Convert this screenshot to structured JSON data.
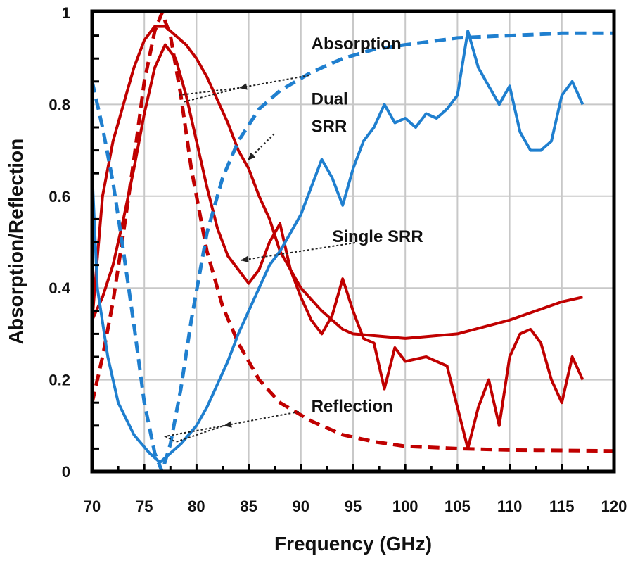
{
  "chart_data": {
    "type": "line",
    "xlabel": "Frequency (GHz)",
    "ylabel": "Absorption/Reflection",
    "xlim": [
      70,
      120
    ],
    "ylim": [
      0,
      1
    ],
    "xticks": [
      70,
      75,
      80,
      85,
      90,
      95,
      100,
      105,
      110,
      115,
      120
    ],
    "yticks": [
      0,
      0.2,
      0.4,
      0.6,
      0.8,
      1
    ],
    "ytick_labels": [
      "0",
      "0.2",
      "0.4",
      "0.6",
      "0.8",
      "1"
    ],
    "grid": true,
    "colors": {
      "absorption": "#c00000",
      "reflection": "#1f7fcf"
    },
    "series": [
      {
        "key": "dual_abs",
        "style": "solid",
        "color": "#c00000",
        "x": [
          70,
          71,
          72,
          73,
          74,
          75,
          76,
          77,
          78,
          79,
          80,
          81,
          82,
          83,
          84,
          85,
          86,
          87,
          88,
          89,
          90,
          92,
          94,
          95,
          100,
          105,
          110,
          115,
          117
        ],
        "y": [
          0.33,
          0.6,
          0.72,
          0.8,
          0.88,
          0.94,
          0.97,
          0.97,
          0.95,
          0.93,
          0.9,
          0.86,
          0.81,
          0.76,
          0.7,
          0.66,
          0.6,
          0.55,
          0.48,
          0.44,
          0.4,
          0.35,
          0.31,
          0.3,
          0.29,
          0.3,
          0.33,
          0.37,
          0.38
        ]
      },
      {
        "key": "single_abs",
        "style": "solid",
        "color": "#c00000",
        "x": [
          70,
          71,
          72,
          73,
          74,
          75,
          76,
          77,
          78,
          79,
          80,
          81,
          82,
          83,
          84,
          85,
          86,
          87,
          88,
          89,
          90,
          91,
          92,
          93,
          94,
          95,
          96,
          97,
          98,
          99,
          100,
          102,
          104,
          105,
          106,
          107,
          108,
          109,
          110,
          111,
          112,
          113,
          114,
          115,
          116,
          117
        ],
        "y": [
          0.33,
          0.38,
          0.45,
          0.55,
          0.66,
          0.78,
          0.88,
          0.93,
          0.9,
          0.82,
          0.72,
          0.62,
          0.53,
          0.47,
          0.44,
          0.41,
          0.44,
          0.5,
          0.54,
          0.44,
          0.38,
          0.33,
          0.3,
          0.34,
          0.42,
          0.35,
          0.29,
          0.28,
          0.18,
          0.27,
          0.24,
          0.25,
          0.23,
          0.14,
          0.05,
          0.14,
          0.2,
          0.1,
          0.25,
          0.3,
          0.31,
          0.28,
          0.2,
          0.15,
          0.25,
          0.2
        ]
      },
      {
        "key": "sim_abs",
        "style": "dashed",
        "color": "#c00000",
        "x": [
          70,
          71,
          72,
          73,
          74,
          75,
          76,
          76.7,
          77.5,
          78.5,
          79.5,
          81,
          82.5,
          84,
          86,
          88,
          91,
          94,
          97,
          100,
          105,
          110,
          115,
          120
        ],
        "y": [
          0.15,
          0.25,
          0.37,
          0.52,
          0.68,
          0.85,
          0.96,
          1.0,
          0.95,
          0.82,
          0.66,
          0.48,
          0.36,
          0.28,
          0.2,
          0.15,
          0.11,
          0.08,
          0.065,
          0.055,
          0.05,
          0.047,
          0.046,
          0.045
        ]
      },
      {
        "key": "sim_ref",
        "style": "dashed",
        "color": "#1f7fcf",
        "x": [
          70,
          71,
          72,
          73,
          74,
          75,
          76,
          76.7,
          77.5,
          78.5,
          79.5,
          81,
          82.5,
          84,
          86,
          88,
          91,
          94,
          97,
          100,
          105,
          110,
          115,
          120
        ],
        "y": [
          0.85,
          0.75,
          0.63,
          0.48,
          0.32,
          0.15,
          0.04,
          0.0,
          0.06,
          0.18,
          0.33,
          0.52,
          0.64,
          0.72,
          0.79,
          0.83,
          0.87,
          0.9,
          0.92,
          0.93,
          0.945,
          0.95,
          0.955,
          0.955
        ]
      },
      {
        "key": "meas_ref",
        "style": "solid",
        "color": "#1f7fcf",
        "x": [
          70,
          70.5,
          71.5,
          72.5,
          74,
          75.5,
          76.5,
          77.5,
          78.5,
          80,
          81,
          82,
          83,
          84,
          85,
          86,
          87,
          88,
          89,
          90,
          91,
          92,
          93,
          94,
          95,
          96,
          97,
          98,
          99,
          100,
          101,
          102,
          103,
          104,
          105,
          106,
          107,
          108,
          109,
          110,
          111,
          112,
          113,
          114,
          115,
          116,
          117
        ],
        "y": [
          0.65,
          0.4,
          0.25,
          0.15,
          0.08,
          0.04,
          0.02,
          0.04,
          0.06,
          0.1,
          0.14,
          0.19,
          0.24,
          0.3,
          0.35,
          0.4,
          0.45,
          0.48,
          0.52,
          0.56,
          0.62,
          0.68,
          0.64,
          0.58,
          0.66,
          0.72,
          0.75,
          0.8,
          0.76,
          0.77,
          0.75,
          0.78,
          0.77,
          0.79,
          0.82,
          0.96,
          0.88,
          0.84,
          0.8,
          0.84,
          0.74,
          0.7,
          0.7,
          0.72,
          0.82,
          0.85,
          0.8
        ]
      }
    ],
    "annotations": [
      {
        "text": "Absorption",
        "x": 91,
        "y": 0.92
      },
      {
        "text": "Dual",
        "x": 91,
        "y": 0.8
      },
      {
        "text": "SRR",
        "x": 91,
        "y": 0.74
      },
      {
        "text": "Single SRR",
        "x": 93,
        "y": 0.5
      },
      {
        "text": "Reflection",
        "x": 91,
        "y": 0.13
      }
    ]
  }
}
